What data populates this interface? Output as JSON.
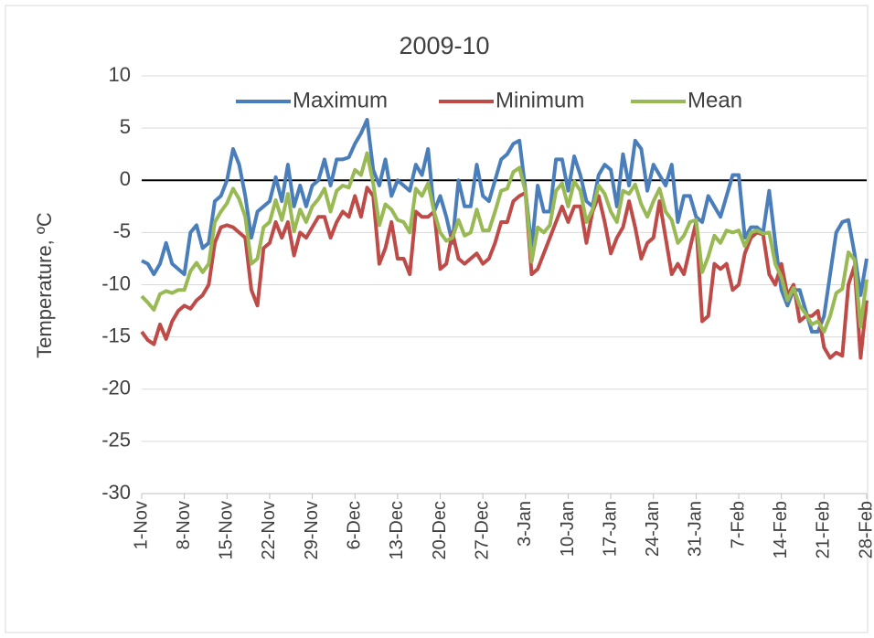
{
  "chart_data": {
    "type": "line",
    "title": "2009-10",
    "y_label": "Temperature, ºC",
    "categories": [
      "1-Nov",
      null,
      null,
      null,
      null,
      null,
      null,
      "8-Nov",
      null,
      null,
      null,
      null,
      null,
      null,
      "15-Nov",
      null,
      null,
      null,
      null,
      null,
      null,
      "22-Nov",
      null,
      null,
      null,
      null,
      null,
      null,
      "29-Nov",
      null,
      null,
      null,
      null,
      null,
      null,
      "6-Dec",
      null,
      null,
      null,
      null,
      null,
      null,
      "13-Dec",
      null,
      null,
      null,
      null,
      null,
      null,
      "20-Dec",
      null,
      null,
      null,
      null,
      null,
      null,
      "27-Dec",
      null,
      null,
      null,
      null,
      null,
      null,
      "3-Jan",
      null,
      null,
      null,
      null,
      null,
      null,
      "10-Jan",
      null,
      null,
      null,
      null,
      null,
      null,
      "17-Jan",
      null,
      null,
      null,
      null,
      null,
      null,
      "24-Jan",
      null,
      null,
      null,
      null,
      null,
      null,
      "31-Jan",
      null,
      null,
      null,
      null,
      null,
      null,
      "7-Feb",
      null,
      null,
      null,
      null,
      null,
      null,
      "14-Feb",
      null,
      null,
      null,
      null,
      null,
      null,
      "21-Feb",
      null,
      null,
      null,
      null,
      null,
      null,
      "28-Feb"
    ],
    "series": [
      {
        "name": "Maximum",
        "color": "#4a7ebb",
        "values": [
          -7.7,
          -8,
          -9,
          -8,
          -6,
          -8,
          -8.5,
          -9,
          -5,
          -4.3,
          -6.5,
          -6,
          -2,
          -1.5,
          0,
          3,
          1.5,
          -1.5,
          -5.5,
          -3,
          -2.5,
          -2,
          0.3,
          -2,
          1.5,
          -2.5,
          -0.5,
          -2.5,
          -0.5,
          0,
          2,
          -0.5,
          2,
          2,
          2.2,
          3.5,
          4.5,
          5.8,
          1,
          -0.5,
          2,
          -1.5,
          0,
          -0.5,
          -1,
          1.5,
          0.5,
          3,
          -3,
          -1.5,
          -3.5,
          -6,
          0,
          -2.5,
          -2.5,
          1.5,
          -1.5,
          -2,
          0,
          2,
          2.5,
          3.5,
          3.8,
          -1,
          -6.5,
          -0.5,
          -3,
          -3,
          2,
          2,
          -1,
          2.3,
          0.5,
          -2,
          -2.5,
          0.5,
          1.5,
          1,
          -2.5,
          2.5,
          -0.5,
          3.8,
          3,
          -1,
          1.5,
          0.5,
          -0.5,
          1.5,
          -4,
          -1.5,
          -1.5,
          -3.5,
          -4,
          -1.5,
          -2.5,
          -3.5,
          -1.5,
          0.5,
          0.5,
          -5.5,
          -4.5,
          -4.5,
          -5,
          -1,
          -6,
          -10.5,
          -12,
          -10.5,
          -10.5,
          -12.5,
          -14.5,
          -14.5,
          -13,
          -9,
          -5,
          -4,
          -3.8,
          -7,
          -11,
          -7.5
        ]
      },
      {
        "name": "Minimum",
        "color": "#be4b48",
        "values": [
          -14.5,
          -15.3,
          -15.7,
          -13.8,
          -15.2,
          -13.5,
          -12.5,
          -12,
          -12.3,
          -11.5,
          -11,
          -10,
          -6,
          -4.5,
          -4.3,
          -4.5,
          -5,
          -5.5,
          -10.5,
          -12,
          -6.5,
          -6,
          -4,
          -5.5,
          -4,
          -7.2,
          -5,
          -5.5,
          -4.5,
          -3.5,
          -3.5,
          -5.5,
          -4,
          -3,
          -3.5,
          -1.5,
          -3.5,
          -0.7,
          -1.5,
          -8,
          -6.5,
          -4,
          -7.5,
          -7.5,
          -9,
          -3,
          -3.5,
          -3.5,
          -3,
          -8.5,
          -8,
          -5,
          -7.5,
          -8,
          -7.5,
          -7,
          -8,
          -7.5,
          -6,
          -4,
          -4,
          -2,
          -1.5,
          -1.2,
          -9,
          -8.5,
          -7,
          -5.5,
          -4,
          -2.5,
          -4,
          -2.5,
          -2.5,
          -6,
          -3,
          -1.5,
          -4,
          -7,
          -5.5,
          -4.5,
          -2,
          -4.5,
          -7.5,
          -6,
          -5.5,
          -2,
          -5.5,
          -9,
          -8,
          -9,
          -6.5,
          -4,
          -13.5,
          -13,
          -8,
          -8.5,
          -8,
          -10.5,
          -10,
          -7,
          -5.5,
          -5,
          -5.2,
          -9,
          -10,
          -8,
          -11,
          -10,
          -13.5,
          -13,
          -13,
          -12.5,
          -16,
          -17,
          -16.5,
          -16.8,
          -10,
          -8.2,
          -17,
          -11.5
        ]
      },
      {
        "name": "Mean",
        "color": "#98b954",
        "values": [
          -11.1,
          -11.7,
          -12.4,
          -10.9,
          -10.6,
          -10.8,
          -10.5,
          -10.5,
          -8.7,
          -7.9,
          -8.8,
          -8,
          -4,
          -3,
          -2.2,
          -0.8,
          -1.8,
          -3.5,
          -8,
          -7.5,
          -4.5,
          -4,
          -1.9,
          -3.8,
          -1.3,
          -4.9,
          -2.8,
          -4,
          -2.5,
          -1.8,
          -0.8,
          -3,
          -1,
          -0.5,
          -0.7,
          1,
          0.5,
          2.6,
          -0.3,
          -4.3,
          -2.3,
          -2.8,
          -3.8,
          -4,
          -5,
          -0.8,
          -1.5,
          -0.3,
          -3,
          -5,
          -5.8,
          -5.5,
          -3.8,
          -5.3,
          -5,
          -2.8,
          -4.8,
          -4.8,
          -3,
          -1,
          -0.8,
          0.8,
          1.2,
          -1.1,
          -7.8,
          -4.5,
          -5,
          -4.3,
          -1,
          -0.3,
          -2.5,
          -0.1,
          -1,
          -4,
          -2.8,
          -0.5,
          -1.3,
          -3,
          -4,
          -1,
          -1.3,
          -0.4,
          -2.3,
          -3.5,
          -2,
          -0.8,
          -3,
          -3.8,
          -6,
          -5.3,
          -4,
          -3.8,
          -8.8,
          -7.3,
          -5.3,
          -6,
          -4.8,
          -5,
          -4.8,
          -6.3,
          -5,
          -4.8,
          -5.1,
          -5,
          -8,
          -9.3,
          -11.5,
          -10.3,
          -12,
          -12.8,
          -13.8,
          -13.5,
          -14.5,
          -13,
          -10.8,
          -10.4,
          -6.9,
          -7.6,
          -14,
          -9.5
        ]
      }
    ],
    "ylim": [
      -30,
      10
    ],
    "yticks": [
      -30,
      -25,
      -20,
      -15,
      -10,
      -5,
      0,
      5,
      10
    ],
    "grid": true,
    "legend": "top"
  }
}
